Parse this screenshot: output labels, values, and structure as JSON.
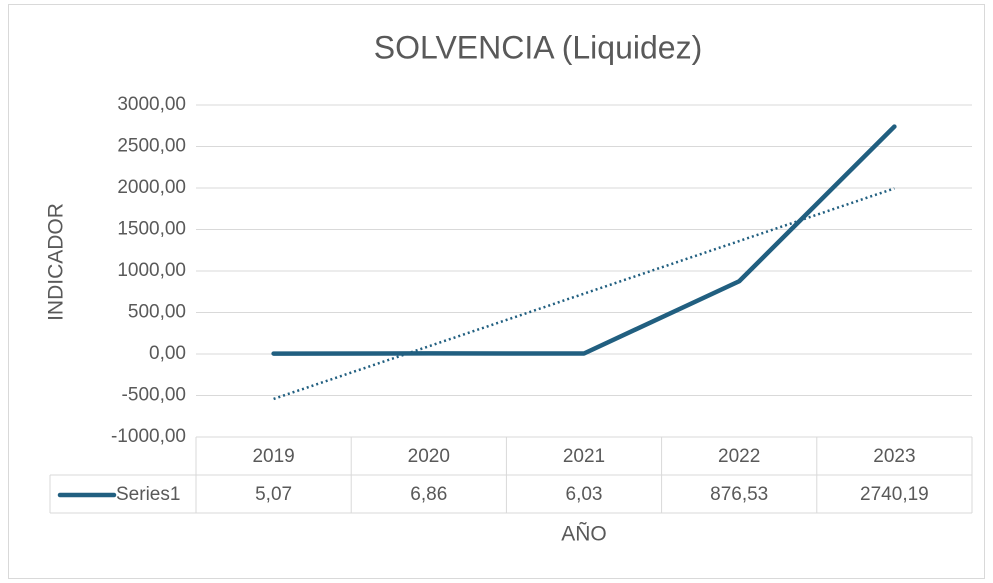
{
  "chart_data": {
    "type": "line",
    "title": "SOLVENCIA (Liquidez)",
    "x_label": "AÑO",
    "y_label": "INDICADOR",
    "categories": [
      "2019",
      "2020",
      "2021",
      "2022",
      "2023"
    ],
    "series": [
      {
        "name": "Series1",
        "color": "#215f80",
        "values": [
          5.07,
          6.86,
          6.03,
          876.53,
          2740.19
        ],
        "value_labels": [
          "5,07",
          "6,86",
          "6,03",
          "876,53",
          "2740,19"
        ]
      }
    ],
    "trendline": "linear",
    "ylim": [
      -1000,
      3000
    ],
    "yticks": [
      {
        "value": -1000,
        "label": "-1000,00"
      },
      {
        "value": -500,
        "label": "-500,00"
      },
      {
        "value": 0,
        "label": "0,00"
      },
      {
        "value": 500,
        "label": "500,00"
      },
      {
        "value": 1000,
        "label": "1000,00"
      },
      {
        "value": 1500,
        "label": "1500,00"
      },
      {
        "value": 2000,
        "label": "2000,00"
      },
      {
        "value": 2500,
        "label": "2500,00"
      },
      {
        "value": 3000,
        "label": "3000,00"
      }
    ],
    "grid": true,
    "data_table": true
  }
}
